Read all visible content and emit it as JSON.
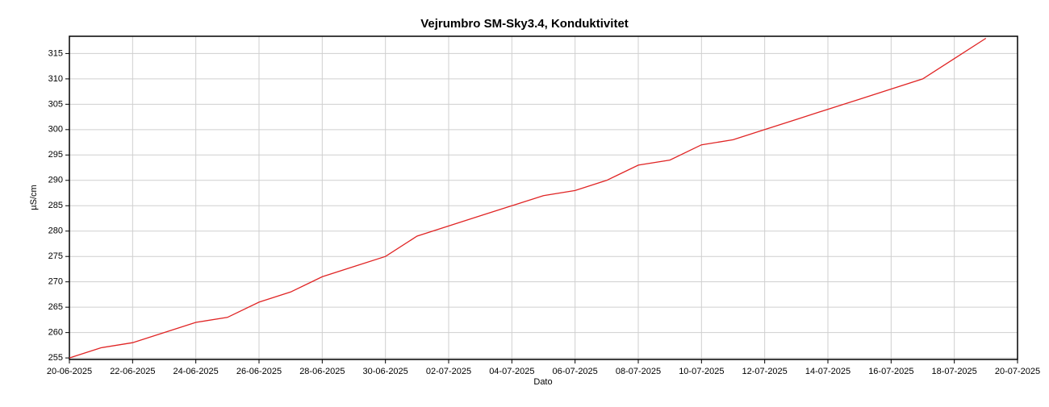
{
  "chart_data": {
    "type": "line",
    "title": "Vejrumbro SM-Sky3.4, Konduktivitet",
    "x_label": "Dato",
    "y_label": "µS/cm",
    "x": [
      "20-06-2025",
      "21-06-2025",
      "22-06-2025",
      "23-06-2025",
      "24-06-2025",
      "25-06-2025",
      "26-06-2025",
      "27-06-2025",
      "28-06-2025",
      "29-06-2025",
      "30-06-2025",
      "01-07-2025",
      "02-07-2025",
      "03-07-2025",
      "04-07-2025",
      "05-07-2025",
      "06-07-2025",
      "07-07-2025",
      "08-07-2025",
      "09-07-2025",
      "10-07-2025",
      "11-07-2025",
      "12-07-2025",
      "13-07-2025",
      "14-07-2025",
      "15-07-2025",
      "16-07-2025",
      "17-07-2025",
      "18-07-2025",
      "19-07-2025"
    ],
    "series": [
      {
        "name": "Konduktivitet",
        "color": "#e02424",
        "values": [
          255,
          257,
          258,
          260,
          262,
          263,
          266,
          268,
          271,
          273,
          275,
          279,
          281,
          283,
          285,
          287,
          288,
          290,
          293,
          294,
          297,
          298,
          300,
          302,
          304,
          306,
          308,
          310,
          314,
          318
        ]
      }
    ],
    "xlim": [
      "20-06-2025",
      "20-07-2025"
    ],
    "xticks": [
      "20-06-2025",
      "22-06-2025",
      "24-06-2025",
      "26-06-2025",
      "28-06-2025",
      "30-06-2025",
      "02-07-2025",
      "04-07-2025",
      "06-07-2025",
      "08-07-2025",
      "10-07-2025",
      "12-07-2025",
      "14-07-2025",
      "16-07-2025",
      "18-07-2025",
      "20-07-2025"
    ],
    "ylim": [
      254.7,
      318.4
    ],
    "yticks": [
      255,
      260,
      265,
      270,
      275,
      280,
      285,
      290,
      295,
      300,
      305,
      310,
      315
    ],
    "grid": true
  }
}
